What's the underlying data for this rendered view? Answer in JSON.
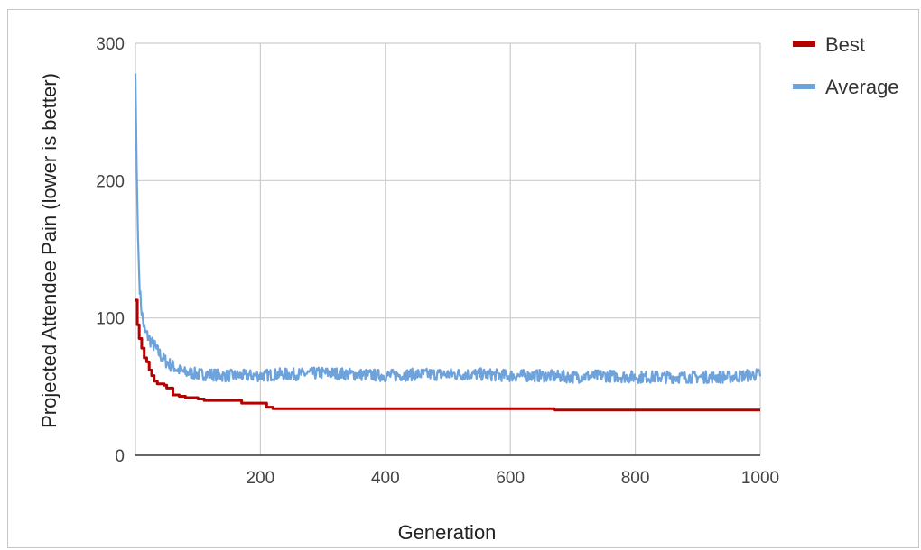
{
  "chart_data": {
    "type": "line",
    "title": "",
    "xlabel": "Generation",
    "ylabel": "Projected Attendee Pain (lower is better)",
    "xlim": [
      0,
      1000
    ],
    "ylim": [
      0,
      300
    ],
    "x_ticks": [
      200,
      400,
      600,
      800,
      1000
    ],
    "y_ticks": [
      0,
      100,
      200,
      300
    ],
    "grid": true,
    "legend_position": "top-right",
    "series": [
      {
        "name": "Best",
        "color": "#b30000",
        "x": [
          0,
          3,
          6,
          10,
          14,
          18,
          22,
          26,
          30,
          35,
          40,
          46,
          50,
          60,
          70,
          80,
          100,
          110,
          150,
          170,
          200,
          210,
          220,
          300,
          400,
          500,
          600,
          660,
          670,
          700,
          800,
          900,
          1000
        ],
        "values": [
          113,
          95,
          85,
          78,
          71,
          68,
          62,
          58,
          54,
          52,
          52,
          51,
          49,
          44,
          43,
          42,
          41,
          40,
          40,
          38,
          38,
          35,
          34,
          34,
          34,
          34,
          34,
          34,
          33,
          33,
          33,
          33,
          33
        ]
      },
      {
        "name": "Average",
        "color": "#6ea2db",
        "x": [
          0,
          2,
          4,
          6,
          8,
          10,
          12,
          15,
          18,
          22,
          26,
          30,
          35,
          40,
          45,
          50,
          55,
          60,
          65,
          70,
          80,
          90,
          100,
          120,
          140,
          160,
          180,
          200,
          230,
          260,
          300,
          350,
          400,
          450,
          500,
          550,
          600,
          650,
          700,
          750,
          800,
          850,
          900,
          950,
          1000
        ],
        "values": [
          278,
          210,
          160,
          130,
          115,
          105,
          98,
          90,
          88,
          85,
          82,
          80,
          76,
          73,
          70,
          68,
          66,
          65,
          63,
          62,
          60,
          60,
          59,
          59,
          58,
          58,
          58,
          58,
          59,
          59,
          60,
          59,
          58,
          59,
          59,
          59,
          58,
          58,
          57,
          58,
          57,
          57,
          57,
          57,
          59
        ]
      }
    ]
  }
}
